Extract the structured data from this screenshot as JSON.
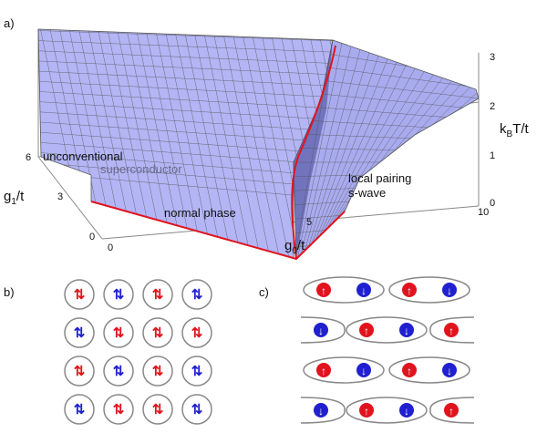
{
  "panels": {
    "a": "a)",
    "b": "b)",
    "c": "c)"
  },
  "surface": {
    "x_axis": {
      "base": "g",
      "sub": "0",
      "rest": "/t",
      "ticks": [
        "0",
        "5",
        "10"
      ]
    },
    "y_axis": {
      "base": "g",
      "sub": "1",
      "rest": "/t",
      "ticks": [
        "0",
        "3",
        "6"
      ]
    },
    "z_axis": {
      "base": "k",
      "sub": "B",
      "rest": "T/t",
      "ticks": [
        "0",
        "1",
        "2",
        "3"
      ]
    },
    "regions": {
      "sc_1": "unconventional",
      "sc_2": "superconductor",
      "normal": "normal phase",
      "lp_1": "local pairing",
      "lp_2": "s-wave"
    }
  },
  "lattice_b": [
    [
      "red",
      "blue",
      "red",
      "blue"
    ],
    [
      "blue",
      "red",
      "red",
      "red"
    ],
    [
      "red",
      "blue",
      "red",
      "blue"
    ],
    [
      "blue",
      "red",
      "red",
      "blue"
    ]
  ]
}
